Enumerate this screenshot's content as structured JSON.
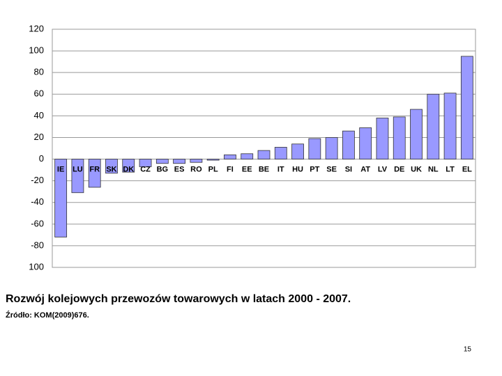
{
  "chart_data": {
    "type": "bar",
    "title": "Rozwój kolejowych przewozów towarowych w latach 2000 - 2007.",
    "source": "Źródło: KOM(2009)676.",
    "categories": [
      "IE",
      "LU",
      "FR",
      "SK",
      "DK",
      "CZ",
      "BG",
      "ES",
      "RO",
      "PL",
      "FI",
      "EE",
      "BE",
      "IT",
      "HU",
      "PT",
      "SE",
      "SI",
      "AT",
      "LV",
      "DE",
      "UK",
      "NL",
      "LT",
      "EL"
    ],
    "values": [
      -72,
      -31,
      -26,
      -13,
      -12,
      -7,
      -4,
      -4,
      -3,
      -1,
      4,
      5,
      8,
      11,
      14,
      19,
      20,
      26,
      29,
      38,
      39,
      46,
      60,
      61,
      95
    ],
    "color": "#9999ff",
    "ylim": [
      -100,
      120
    ],
    "yticks": [
      {
        "value": -100,
        "label": "100"
      },
      -80,
      -60,
      -40,
      -20,
      0,
      20,
      40,
      60,
      80,
      100,
      120
    ],
    "grid": true
  },
  "page_number": 15
}
